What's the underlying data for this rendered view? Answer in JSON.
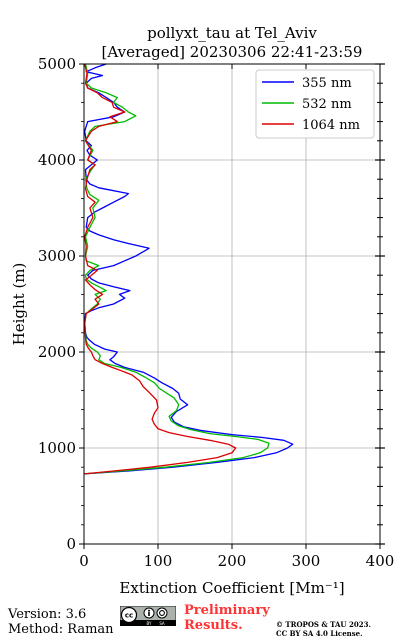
{
  "chart_data": {
    "type": "line",
    "title": "pollyxt_tau at Tel_Aviv",
    "subtitle": "[Averaged] 20230306 22:41-23:59",
    "xlabel": "Extinction Coefficient [Mm⁻¹]",
    "ylabel": "Height (m)",
    "xlim": [
      0,
      400
    ],
    "ylim": [
      0,
      5000
    ],
    "xticks": [
      "0",
      "100",
      "200",
      "300",
      "400"
    ],
    "yticks": [
      "0",
      "1000",
      "2000",
      "3000",
      "4000",
      "5000"
    ],
    "grid": true,
    "legend_position": "top-right",
    "series": [
      {
        "name": "355 nm",
        "color": "#0000ff",
        "points": [
          [
            0,
            730
          ],
          [
            60,
            760
          ],
          [
            120,
            800
          ],
          [
            180,
            850
          ],
          [
            230,
            900
          ],
          [
            260,
            950
          ],
          [
            275,
            1000
          ],
          [
            282,
            1040
          ],
          [
            270,
            1080
          ],
          [
            240,
            1110
          ],
          [
            200,
            1140
          ],
          [
            160,
            1180
          ],
          [
            135,
            1220
          ],
          [
            122,
            1270
          ],
          [
            118,
            1320
          ],
          [
            125,
            1380
          ],
          [
            140,
            1450
          ],
          [
            130,
            1510
          ],
          [
            128,
            1570
          ],
          [
            120,
            1620
          ],
          [
            105,
            1680
          ],
          [
            95,
            1730
          ],
          [
            80,
            1790
          ],
          [
            55,
            1840
          ],
          [
            42,
            1880
          ],
          [
            35,
            1920
          ],
          [
            40,
            1950
          ],
          [
            45,
            2000
          ],
          [
            28,
            2030
          ],
          [
            14,
            2080
          ],
          [
            8,
            2120
          ],
          [
            4,
            2150
          ],
          [
            2,
            2200
          ],
          [
            1,
            2300
          ],
          [
            2,
            2400
          ],
          [
            10,
            2430
          ],
          [
            20,
            2460
          ],
          [
            40,
            2500
          ],
          [
            55,
            2560
          ],
          [
            48,
            2600
          ],
          [
            62,
            2640
          ],
          [
            40,
            2680
          ],
          [
            20,
            2720
          ],
          [
            10,
            2760
          ],
          [
            5,
            2800
          ],
          [
            12,
            2850
          ],
          [
            40,
            2900
          ],
          [
            55,
            2950
          ],
          [
            70,
            3000
          ],
          [
            88,
            3080
          ],
          [
            60,
            3130
          ],
          [
            40,
            3170
          ],
          [
            20,
            3220
          ],
          [
            8,
            3260
          ],
          [
            3,
            3300
          ],
          [
            5,
            3400
          ],
          [
            15,
            3460
          ],
          [
            25,
            3500
          ],
          [
            40,
            3560
          ],
          [
            55,
            3620
          ],
          [
            60,
            3650
          ],
          [
            40,
            3680
          ],
          [
            20,
            3710
          ],
          [
            8,
            3750
          ],
          [
            3,
            3800
          ],
          [
            2,
            3900
          ],
          [
            10,
            3950
          ],
          [
            18,
            4000
          ],
          [
            8,
            4050
          ],
          [
            4,
            4100
          ],
          [
            10,
            4150
          ],
          [
            3,
            4200
          ],
          [
            1,
            4300
          ],
          [
            5,
            4400
          ],
          [
            40,
            4450
          ],
          [
            55,
            4500
          ],
          [
            45,
            4550
          ],
          [
            40,
            4600
          ],
          [
            30,
            4650
          ],
          [
            20,
            4700
          ],
          [
            5,
            4750
          ],
          [
            3,
            4800
          ],
          [
            10,
            4850
          ],
          [
            25,
            4880
          ],
          [
            3,
            4920
          ],
          [
            15,
            4960
          ],
          [
            30,
            5000
          ]
        ]
      },
      {
        "name": "532 nm",
        "color": "#00bb00",
        "points": [
          [
            0,
            730
          ],
          [
            50,
            760
          ],
          [
            110,
            800
          ],
          [
            170,
            850
          ],
          [
            215,
            900
          ],
          [
            238,
            950
          ],
          [
            248,
            1000
          ],
          [
            250,
            1050
          ],
          [
            235,
            1090
          ],
          [
            205,
            1120
          ],
          [
            170,
            1150
          ],
          [
            145,
            1190
          ],
          [
            128,
            1230
          ],
          [
            118,
            1280
          ],
          [
            115,
            1330
          ],
          [
            125,
            1390
          ],
          [
            128,
            1450
          ],
          [
            122,
            1520
          ],
          [
            110,
            1580
          ],
          [
            102,
            1620
          ],
          [
            95,
            1680
          ],
          [
            82,
            1740
          ],
          [
            70,
            1790
          ],
          [
            50,
            1840
          ],
          [
            28,
            1880
          ],
          [
            20,
            1920
          ],
          [
            22,
            1960
          ],
          [
            18,
            2000
          ],
          [
            10,
            2040
          ],
          [
            5,
            2080
          ],
          [
            3,
            2120
          ],
          [
            2,
            2200
          ],
          [
            1,
            2300
          ],
          [
            3,
            2400
          ],
          [
            10,
            2450
          ],
          [
            18,
            2500
          ],
          [
            22,
            2550
          ],
          [
            15,
            2600
          ],
          [
            30,
            2640
          ],
          [
            20,
            2680
          ],
          [
            10,
            2720
          ],
          [
            3,
            2760
          ],
          [
            2,
            2800
          ],
          [
            8,
            2850
          ],
          [
            20,
            2900
          ],
          [
            3,
            2950
          ],
          [
            2,
            3000
          ],
          [
            5,
            3100
          ],
          [
            2,
            3200
          ],
          [
            8,
            3300
          ],
          [
            15,
            3400
          ],
          [
            12,
            3500
          ],
          [
            20,
            3580
          ],
          [
            8,
            3640
          ],
          [
            4,
            3700
          ],
          [
            2,
            3800
          ],
          [
            10,
            3900
          ],
          [
            15,
            3950
          ],
          [
            5,
            4000
          ],
          [
            12,
            4100
          ],
          [
            2,
            4200
          ],
          [
            8,
            4300
          ],
          [
            15,
            4350
          ],
          [
            55,
            4400
          ],
          [
            70,
            4460
          ],
          [
            60,
            4500
          ],
          [
            52,
            4550
          ],
          [
            40,
            4600
          ],
          [
            45,
            4650
          ],
          [
            30,
            4700
          ],
          [
            10,
            4750
          ],
          [
            3,
            4800
          ],
          [
            5,
            4900
          ],
          [
            2,
            5000
          ]
        ]
      },
      {
        "name": "1064 nm",
        "color": "#dd0000",
        "points": [
          [
            0,
            730
          ],
          [
            40,
            760
          ],
          [
            90,
            800
          ],
          [
            140,
            850
          ],
          [
            180,
            900
          ],
          [
            200,
            950
          ],
          [
            205,
            1000
          ],
          [
            195,
            1040
          ],
          [
            170,
            1080
          ],
          [
            140,
            1120
          ],
          [
            115,
            1160
          ],
          [
            100,
            1200
          ],
          [
            95,
            1250
          ],
          [
            92,
            1300
          ],
          [
            95,
            1360
          ],
          [
            100,
            1420
          ],
          [
            98,
            1500
          ],
          [
            88,
            1580
          ],
          [
            80,
            1640
          ],
          [
            75,
            1700
          ],
          [
            65,
            1760
          ],
          [
            52,
            1800
          ],
          [
            38,
            1840
          ],
          [
            25,
            1880
          ],
          [
            15,
            1920
          ],
          [
            12,
            1960
          ],
          [
            10,
            2000
          ],
          [
            6,
            2040
          ],
          [
            3,
            2080
          ],
          [
            2,
            2150
          ],
          [
            1,
            2300
          ],
          [
            3,
            2400
          ],
          [
            12,
            2450
          ],
          [
            20,
            2500
          ],
          [
            15,
            2550
          ],
          [
            25,
            2600
          ],
          [
            15,
            2650
          ],
          [
            8,
            2700
          ],
          [
            2,
            2750
          ],
          [
            10,
            2800
          ],
          [
            18,
            2850
          ],
          [
            5,
            2900
          ],
          [
            2,
            3000
          ],
          [
            3,
            3100
          ],
          [
            1,
            3200
          ],
          [
            5,
            3300
          ],
          [
            12,
            3400
          ],
          [
            8,
            3500
          ],
          [
            15,
            3560
          ],
          [
            5,
            3620
          ],
          [
            2,
            3700
          ],
          [
            4,
            3800
          ],
          [
            8,
            3900
          ],
          [
            15,
            3950
          ],
          [
            5,
            4000
          ],
          [
            10,
            4100
          ],
          [
            2,
            4200
          ],
          [
            10,
            4300
          ],
          [
            20,
            4350
          ],
          [
            45,
            4400
          ],
          [
            35,
            4450
          ],
          [
            55,
            4500
          ],
          [
            40,
            4550
          ],
          [
            38,
            4600
          ],
          [
            25,
            4650
          ],
          [
            18,
            4700
          ],
          [
            5,
            4750
          ],
          [
            2,
            4800
          ],
          [
            4,
            4900
          ],
          [
            1,
            5000
          ]
        ]
      }
    ]
  },
  "footer": {
    "version": "Version: 3.6",
    "method": "Method: Raman",
    "preliminary_line1": "Preliminary",
    "preliminary_line2": "Results.",
    "copyright_line1": "© TROPOS & TAU 2023.",
    "copyright_line2": "CC BY SA 4.0 License."
  }
}
